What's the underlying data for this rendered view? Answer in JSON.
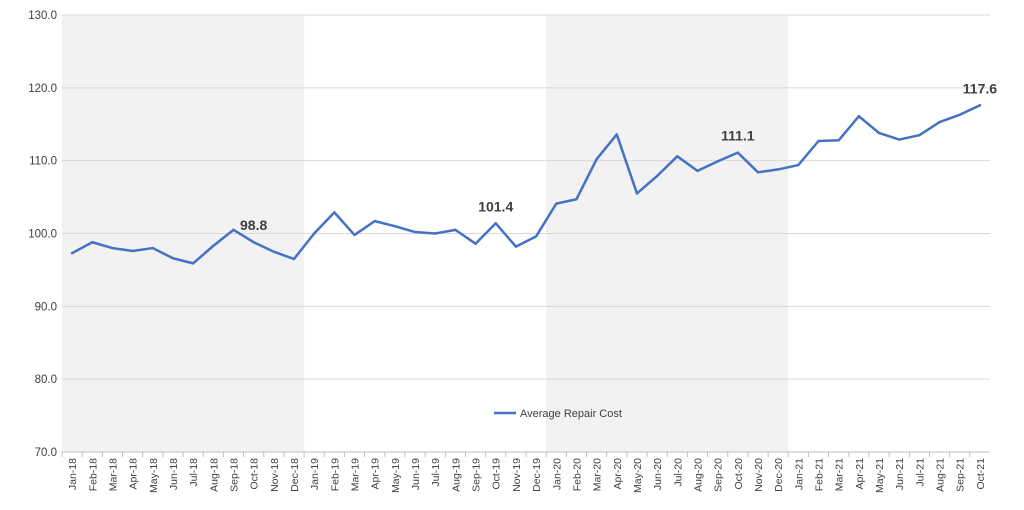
{
  "chart_data": {
    "type": "line",
    "title": "",
    "xlabel": "",
    "ylabel": "",
    "ylim": [
      70,
      130
    ],
    "yticks": [
      "70.0",
      "80.0",
      "90.0",
      "100.0",
      "110.0",
      "120.0",
      "130.0"
    ],
    "grid": true,
    "legend_position": "bottom-center",
    "categories": [
      "Jan-18",
      "Feb-18",
      "Mar-18",
      "Apr-18",
      "May-18",
      "Jun-18",
      "Jul-18",
      "Aug-18",
      "Sep-18",
      "Oct-18",
      "Nov-18",
      "Dec-18",
      "Jan-19",
      "Feb-19",
      "Mar-19",
      "Apr-19",
      "May-19",
      "Jun-19",
      "Jul-19",
      "Aug-19",
      "Sep-19",
      "Oct-19",
      "Nov-19",
      "Dec-19",
      "Jan-20",
      "Feb-20",
      "Mar-20",
      "Apr-20",
      "May-20",
      "Jun-20",
      "Jul-20",
      "Aug-20",
      "Sep-20",
      "Oct-20",
      "Nov-20",
      "Dec-20",
      "Jan-21",
      "Feb-21",
      "Mar-21",
      "Apr-21",
      "May-21",
      "Jun-21",
      "Jul-21",
      "Aug-21",
      "Sep-21",
      "Oct-21"
    ],
    "series": [
      {
        "name": "Average Repair Cost",
        "color": "#4472c4",
        "values": [
          97.3,
          98.8,
          98.0,
          97.6,
          98.0,
          96.6,
          95.9,
          98.3,
          100.5,
          98.8,
          97.5,
          96.5,
          100.0,
          102.9,
          99.8,
          101.7,
          101.0,
          100.2,
          100.0,
          100.5,
          98.6,
          101.4,
          98.2,
          99.6,
          104.1,
          104.7,
          110.2,
          113.6,
          105.5,
          107.9,
          110.6,
          108.6,
          109.9,
          111.1,
          108.4,
          108.8,
          109.4,
          112.7,
          112.8,
          116.1,
          113.8,
          112.9,
          113.5,
          115.3,
          116.3,
          117.6
        ]
      }
    ],
    "data_labels": [
      {
        "index": 9,
        "text": "98.8"
      },
      {
        "index": 21,
        "text": "101.4"
      },
      {
        "index": 33,
        "text": "111.1"
      },
      {
        "index": 45,
        "text": "117.6"
      }
    ],
    "shaded_periods": [
      {
        "from": "Jan-18",
        "to": "Dec-18",
        "color": "#f2f2f2"
      },
      {
        "from": "Jan-20",
        "to": "Dec-20",
        "color": "#f2f2f2"
      }
    ]
  }
}
